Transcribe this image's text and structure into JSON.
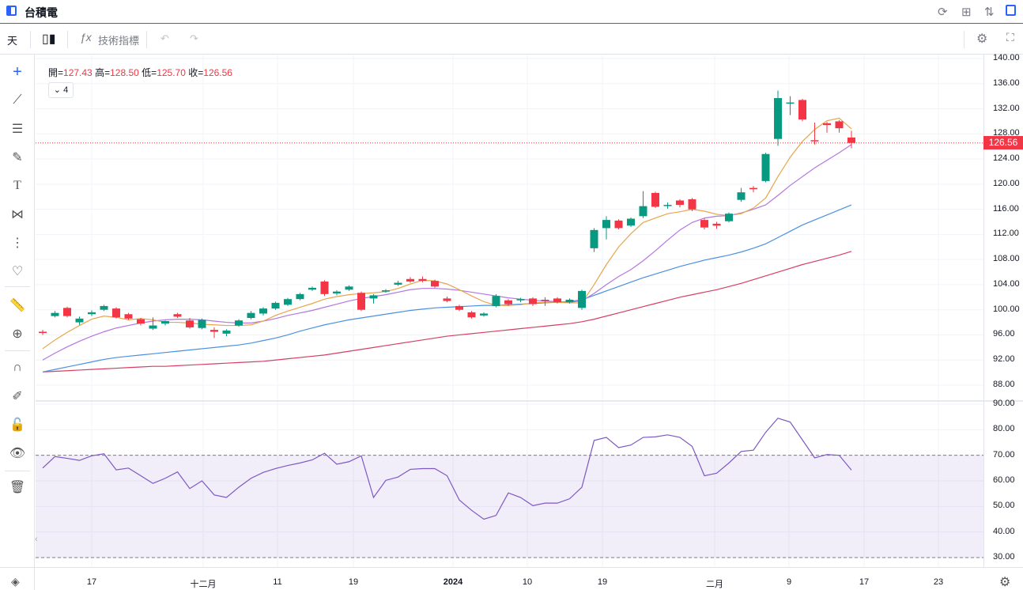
{
  "window": {
    "title": "台積電"
  },
  "toolbar": {
    "interval_label": "天",
    "indicators_label": "技術指標"
  },
  "legend": {
    "open_label": "開",
    "open_value": "127.43",
    "high_label": "高",
    "high_value": "128.50",
    "low_label": "低",
    "low_value": "125.70",
    "close_label": "收",
    "close_value": "126.56",
    "collapse_count": "4"
  },
  "price_label": "126.56",
  "y_axis_labels": [
    "140.00",
    "136.00",
    "132.00",
    "128.00",
    "124.00",
    "120.00",
    "116.00",
    "112.00",
    "108.00",
    "104.00",
    "100.00",
    "96.00",
    "92.00",
    "88.00"
  ],
  "rsi_axis_labels": [
    "90.00",
    "80.00",
    "70.00",
    "60.00",
    "50.00",
    "40.00",
    "30.00"
  ],
  "x_axis_labels": [
    "17",
    "十二月",
    "11",
    "19",
    "2024",
    "10",
    "19",
    "二月",
    "9",
    "17",
    "23"
  ],
  "colors": {
    "up": "#089981",
    "down": "#f23645",
    "ma5": "#e8a54b",
    "ma10": "#b476e0",
    "ma20": "#4a90e2",
    "ma60": "#d63e64",
    "rsi": "#7e57c2",
    "accent": "#2962ff"
  },
  "icons": {
    "title": "chart-panel-icon",
    "refresh": "refresh-icon",
    "layout": "grid-layout-icon",
    "compare": "sort-arrows-icon",
    "panel": "side-panel-icon",
    "candle": "candlestick-icon",
    "fx": "function-icon",
    "undo": "undo-icon",
    "redo": "redo-icon",
    "settings": "gear-icon",
    "fullscreen": "fullscreen-icon",
    "crosshair": "crosshair-icon",
    "trendline": "trendline-icon",
    "fib": "horizontal-lines-icon",
    "brush": "brush-icon",
    "text": "text-icon",
    "pattern": "pattern-icon",
    "forecast": "forecast-icon",
    "heart": "heart-icon",
    "ruler": "ruler-icon",
    "zoom": "zoom-in-icon",
    "magnet": "magnet-icon",
    "lock-draw": "pencil-lock-icon",
    "lock": "lock-icon",
    "eye": "eye-icon",
    "trash": "trash-icon",
    "layers": "layers-icon",
    "chart-settings": "gear-icon"
  },
  "chart_data": {
    "type": "candlestick",
    "ylim": [
      88,
      140
    ],
    "rsi_ylim": [
      30,
      90
    ],
    "rsi_bands": [
      30,
      70
    ],
    "current_price": 126.56,
    "candles": [
      [
        96.5,
        96.3,
        96.8,
        96.0
      ],
      [
        99.0,
        99.5,
        99.8,
        98.8
      ],
      [
        100.3,
        99.0,
        100.5,
        98.8
      ],
      [
        98.0,
        98.6,
        98.9,
        97.6
      ],
      [
        99.3,
        99.6,
        99.9,
        99.0
      ],
      [
        100.0,
        100.6,
        100.8,
        99.8
      ],
      [
        100.2,
        98.8,
        100.4,
        98.6
      ],
      [
        99.3,
        98.6,
        99.5,
        98.4
      ],
      [
        98.5,
        97.8,
        98.7,
        97.5
      ],
      [
        97.0,
        97.5,
        98.8,
        96.8
      ],
      [
        97.8,
        98.2,
        98.3,
        97.5
      ],
      [
        99.3,
        98.9,
        99.5,
        98.7
      ],
      [
        98.3,
        97.2,
        98.7,
        97.0
      ],
      [
        97.1,
        98.4,
        98.6,
        96.9
      ],
      [
        96.8,
        96.5,
        97.2,
        95.5
      ],
      [
        96.2,
        96.7,
        96.9,
        95.8
      ],
      [
        97.5,
        98.3,
        98.5,
        97.3
      ],
      [
        98.7,
        99.5,
        99.8,
        98.5
      ],
      [
        99.4,
        100.2,
        100.4,
        99.1
      ],
      [
        100.2,
        101.1,
        101.3,
        100.0
      ],
      [
        100.8,
        101.7,
        101.9,
        100.6
      ],
      [
        101.7,
        102.5,
        102.7,
        101.5
      ],
      [
        103.2,
        103.5,
        103.7,
        103.0
      ],
      [
        104.5,
        102.5,
        104.7,
        102.2
      ],
      [
        102.6,
        102.9,
        103.1,
        102.3
      ],
      [
        103.2,
        103.7,
        103.9,
        103.0
      ],
      [
        102.7,
        100.0,
        102.9,
        99.8
      ],
      [
        101.8,
        102.3,
        102.5,
        101.0
      ],
      [
        102.9,
        103.1,
        103.3,
        102.7
      ],
      [
        104.0,
        104.3,
        104.6,
        103.8
      ],
      [
        104.9,
        104.5,
        105.2,
        104.3
      ],
      [
        104.9,
        104.6,
        105.3,
        104.4
      ],
      [
        104.6,
        103.7,
        104.8,
        103.5
      ],
      [
        101.8,
        101.4,
        102.1,
        101.2
      ],
      [
        100.6,
        100.0,
        100.8,
        99.8
      ],
      [
        99.6,
        98.8,
        99.8,
        98.6
      ],
      [
        99.1,
        99.4,
        99.6,
        98.9
      ],
      [
        100.6,
        102.2,
        102.5,
        100.4
      ],
      [
        101.5,
        100.9,
        101.7,
        100.6
      ],
      [
        101.5,
        101.7,
        101.9,
        101.2
      ],
      [
        101.8,
        100.9,
        102.0,
        100.6
      ],
      [
        101.6,
        101.4,
        102.0,
        100.6
      ],
      [
        101.8,
        101.2,
        102.0,
        101.0
      ],
      [
        101.2,
        101.6,
        101.8,
        101.0
      ],
      [
        100.3,
        103.0,
        103.2,
        100.0
      ],
      [
        109.8,
        112.7,
        113.0,
        109.2
      ],
      [
        113.0,
        114.3,
        114.9,
        111.2
      ],
      [
        114.2,
        113.0,
        114.4,
        112.8
      ],
      [
        113.4,
        114.5,
        114.7,
        113.2
      ],
      [
        114.9,
        116.5,
        118.9,
        114.6
      ],
      [
        118.6,
        116.4,
        118.8,
        116.2
      ],
      [
        116.7,
        116.7,
        117.1,
        116.1
      ],
      [
        117.4,
        116.7,
        117.6,
        116.3
      ],
      [
        117.6,
        116.0,
        117.8,
        115.7
      ],
      [
        114.3,
        113.1,
        114.5,
        112.8
      ],
      [
        113.7,
        113.4,
        114.0,
        112.9
      ],
      [
        114.1,
        115.3,
        115.5,
        113.9
      ],
      [
        117.5,
        118.7,
        119.4,
        117.2
      ],
      [
        119.4,
        119.2,
        119.7,
        118.7
      ],
      [
        120.5,
        124.8,
        125.0,
        120.3
      ],
      [
        127.2,
        133.7,
        134.9,
        126.1
      ],
      [
        132.9,
        133.0,
        134.0,
        131.0
      ],
      [
        133.4,
        130.3,
        133.6,
        130.0
      ],
      [
        127.0,
        126.9,
        129.8,
        126.3
      ],
      [
        129.7,
        129.4,
        129.9,
        128.2
      ],
      [
        130.0,
        128.9,
        130.2,
        128.2
      ],
      [
        127.43,
        126.56,
        128.5,
        125.7
      ]
    ],
    "ma5": [
      93.8,
      95.2,
      96.4,
      97.5,
      98.5,
      99.0,
      98.8,
      98.4,
      98.6,
      98.4,
      98.0,
      98.0,
      97.9,
      97.7,
      97.6,
      97.5,
      97.5,
      97.6,
      98.2,
      99.1,
      99.8,
      100.4,
      101.0,
      101.7,
      102.1,
      102.4,
      102.6,
      102.7,
      102.9,
      103.4,
      104.1,
      104.7,
      104.6,
      104.1,
      103.2,
      102.2,
      101.3,
      100.7,
      100.7,
      100.8,
      101.1,
      101.2,
      101.2,
      101.1,
      101.1,
      104.0,
      107.2,
      110.0,
      112.1,
      113.9,
      114.6,
      115.3,
      115.6,
      116.0,
      115.7,
      115.2,
      115.0,
      115.3,
      116.2,
      117.8,
      121.2,
      124.3,
      126.8,
      128.7,
      130.1,
      130.5,
      128.8
    ],
    "ma10": [
      92.0,
      93.1,
      94.1,
      95.0,
      95.8,
      96.5,
      97.1,
      97.5,
      97.9,
      98.2,
      98.4,
      98.5,
      98.5,
      98.4,
      98.2,
      98.0,
      97.9,
      97.9,
      98.2,
      98.6,
      99.1,
      99.5,
      99.9,
      100.4,
      100.9,
      101.4,
      101.8,
      102.1,
      102.4,
      102.8,
      103.2,
      103.4,
      103.4,
      103.3,
      103.1,
      102.8,
      102.5,
      102.2,
      101.9,
      101.7,
      101.5,
      101.4,
      101.3,
      101.2,
      101.4,
      102.6,
      104.0,
      105.3,
      106.4,
      107.8,
      109.4,
      111.1,
      112.7,
      113.9,
      114.6,
      114.9,
      115.0,
      115.4,
      116.0,
      116.7,
      118.2,
      119.8,
      121.2,
      122.6,
      123.8,
      125.0,
      126.3
    ],
    "ma20": [
      90.1,
      90.5,
      90.9,
      91.3,
      91.7,
      92.1,
      92.4,
      92.6,
      92.8,
      93.0,
      93.2,
      93.4,
      93.6,
      93.8,
      94.0,
      94.2,
      94.4,
      94.7,
      95.1,
      95.5,
      96.0,
      96.6,
      97.1,
      97.6,
      98.0,
      98.4,
      98.7,
      99.0,
      99.3,
      99.6,
      99.9,
      100.1,
      100.3,
      100.4,
      100.5,
      100.6,
      100.7,
      100.7,
      100.8,
      100.9,
      101.0,
      101.1,
      101.2,
      101.3,
      101.6,
      102.3,
      103.0,
      103.7,
      104.4,
      105.1,
      105.7,
      106.3,
      106.9,
      107.4,
      107.9,
      108.3,
      108.7,
      109.2,
      109.8,
      110.5,
      111.5,
      112.5,
      113.5,
      114.3,
      115.1,
      115.9,
      116.7
    ],
    "ma60": [
      90.1,
      90.2,
      90.3,
      90.4,
      90.5,
      90.6,
      90.7,
      90.8,
      90.9,
      91.0,
      91.0,
      91.1,
      91.2,
      91.3,
      91.4,
      91.5,
      91.6,
      91.7,
      91.8,
      92.0,
      92.2,
      92.4,
      92.6,
      92.8,
      93.1,
      93.4,
      93.7,
      94.0,
      94.3,
      94.6,
      94.9,
      95.2,
      95.5,
      95.8,
      96.0,
      96.2,
      96.4,
      96.6,
      96.8,
      97.0,
      97.2,
      97.4,
      97.6,
      97.8,
      98.1,
      98.5,
      99.0,
      99.5,
      100.0,
      100.5,
      101.0,
      101.5,
      102.0,
      102.4,
      102.8,
      103.2,
      103.7,
      104.2,
      104.8,
      105.4,
      106.0,
      106.6,
      107.2,
      107.7,
      108.2,
      108.7,
      109.3
    ],
    "rsi": [
      65.0,
      69.5,
      68.8,
      68.0,
      69.8,
      70.6,
      64.3,
      65.0,
      62.0,
      59.0,
      61.0,
      63.5,
      57.0,
      60.0,
      54.5,
      53.5,
      57.5,
      61.0,
      63.3,
      64.8,
      66.0,
      67.0,
      68.2,
      70.8,
      66.5,
      67.5,
      69.8,
      53.5,
      60.2,
      61.5,
      64.5,
      64.8,
      64.8,
      62.0,
      52.5,
      48.5,
      45.0,
      46.5,
      55.3,
      53.5,
      50.3,
      51.3,
      51.3,
      53.0,
      57.5,
      75.8,
      77.0,
      73.0,
      74.0,
      77.0,
      77.2,
      78.0,
      77.0,
      73.5,
      62.0,
      63.0,
      67.0,
      71.5,
      72.0,
      79.0,
      84.5,
      83.0,
      76.0,
      69.0,
      70.3,
      70.0,
      64.2
    ]
  }
}
